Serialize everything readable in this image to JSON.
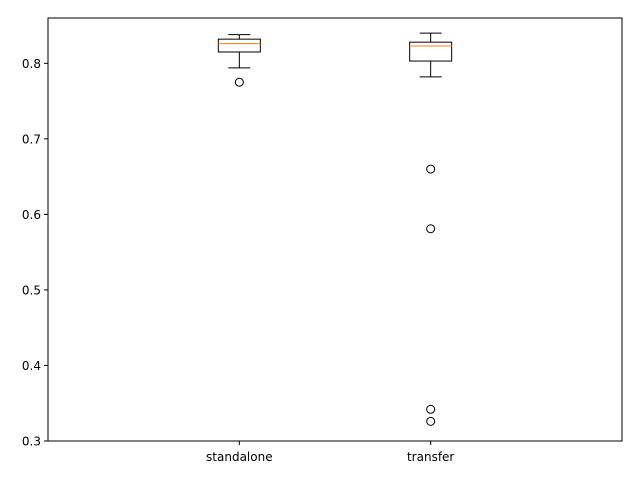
{
  "chart_data": {
    "type": "boxplot",
    "title": "",
    "xlabel": "",
    "ylabel": "",
    "ylim": [
      0.3,
      0.86
    ],
    "yticks": [
      0.3,
      0.4,
      0.5,
      0.6,
      0.7,
      0.8
    ],
    "ytick_labels": [
      "0.3",
      "0.4",
      "0.5",
      "0.6",
      "0.7",
      "0.8"
    ],
    "grid": false,
    "categories": [
      "standalone",
      "transfer"
    ],
    "boxes": [
      {
        "name": "standalone",
        "whisker_low": 0.794,
        "q1": 0.815,
        "median": 0.826,
        "q3": 0.832,
        "whisker_high": 0.838,
        "outliers": [
          0.775
        ]
      },
      {
        "name": "transfer",
        "whisker_low": 0.782,
        "q1": 0.803,
        "median": 0.823,
        "q3": 0.828,
        "whisker_high": 0.84,
        "outliers": [
          0.66,
          0.581,
          0.342,
          0.326
        ]
      }
    ],
    "colors": {
      "box": "#000000",
      "median": "#ff7f0e",
      "outlier": "#000000"
    }
  }
}
